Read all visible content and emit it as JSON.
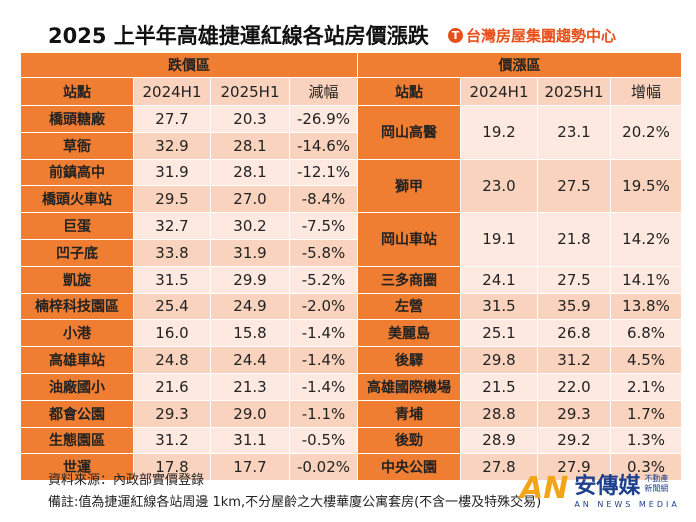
{
  "title": "2025 上半年高雄捷運紅線各站房價漲跌",
  "brand": "台灣房屋集團趨勢中心",
  "chart_data": {
    "type": "table",
    "groups": [
      "跌價區",
      "價漲區"
    ],
    "columns_down": [
      "站點",
      "2024H1",
      "2025H1",
      "減幅"
    ],
    "columns_up": [
      "站點",
      "2024H1",
      "2025H1",
      "增幅"
    ],
    "down": [
      [
        "橋頭糖廠",
        "27.7",
        "20.3",
        "-26.9%"
      ],
      [
        "草衙",
        "32.9",
        "28.1",
        "-14.6%"
      ],
      [
        "前鎮高中",
        "31.9",
        "28.1",
        "-12.1%"
      ],
      [
        "橋頭火車站",
        "29.5",
        "27.0",
        "-8.4%"
      ],
      [
        "巨蛋",
        "32.7",
        "30.2",
        "-7.5%"
      ],
      [
        "凹子底",
        "33.8",
        "31.9",
        "-5.8%"
      ],
      [
        "凱旋",
        "31.5",
        "29.9",
        "-5.2%"
      ],
      [
        "楠梓科技園區",
        "25.4",
        "24.9",
        "-2.0%"
      ],
      [
        "小港",
        "16.0",
        "15.8",
        "-1.4%"
      ],
      [
        "高雄車站",
        "24.8",
        "24.4",
        "-1.4%"
      ],
      [
        "油廠國小",
        "21.6",
        "21.3",
        "-1.4%"
      ],
      [
        "都會公園",
        "29.3",
        "29.0",
        "-1.1%"
      ],
      [
        "生態園區",
        "31.2",
        "31.1",
        "-0.5%"
      ],
      [
        "世運",
        "17.8",
        "17.7",
        "-0.02%"
      ]
    ],
    "up": [
      [
        "岡山高醫",
        "19.2",
        "23.1",
        "20.2%"
      ],
      [
        "獅甲",
        "23.0",
        "27.5",
        "19.5%"
      ],
      [
        "岡山車站",
        "19.1",
        "21.8",
        "14.2%"
      ],
      [
        "三多商圈",
        "24.1",
        "27.5",
        "14.1%"
      ],
      [
        "左營",
        "31.5",
        "35.9",
        "13.8%"
      ],
      [
        "美麗島",
        "25.1",
        "26.8",
        "6.8%"
      ],
      [
        "後驛",
        "29.8",
        "31.2",
        "4.5%"
      ],
      [
        "高雄國際機場",
        "21.5",
        "22.0",
        "2.1%"
      ],
      [
        "青埔",
        "28.8",
        "29.3",
        "1.7%"
      ],
      [
        "後勁",
        "28.9",
        "29.2",
        "1.3%"
      ],
      [
        "中央公園",
        "27.8",
        "27.9",
        "0.3%"
      ]
    ]
  },
  "notes": {
    "source": "資料來源：內政部實價登錄",
    "remark": "備註:值為捷運紅線各站周邊 1km,不分屋齡之大樓華廈公寓套房(不含一樓及特殊交易)"
  },
  "media": {
    "name": "安傳媒",
    "side1": "不動產",
    "side2": "新聞網",
    "sub": "AN NEWS MEDIA"
  },
  "colors": {
    "header": "#ef7d32",
    "row_light": "#fde9df",
    "row_dark": "#f9d3bd",
    "brand": "#e8501b"
  }
}
